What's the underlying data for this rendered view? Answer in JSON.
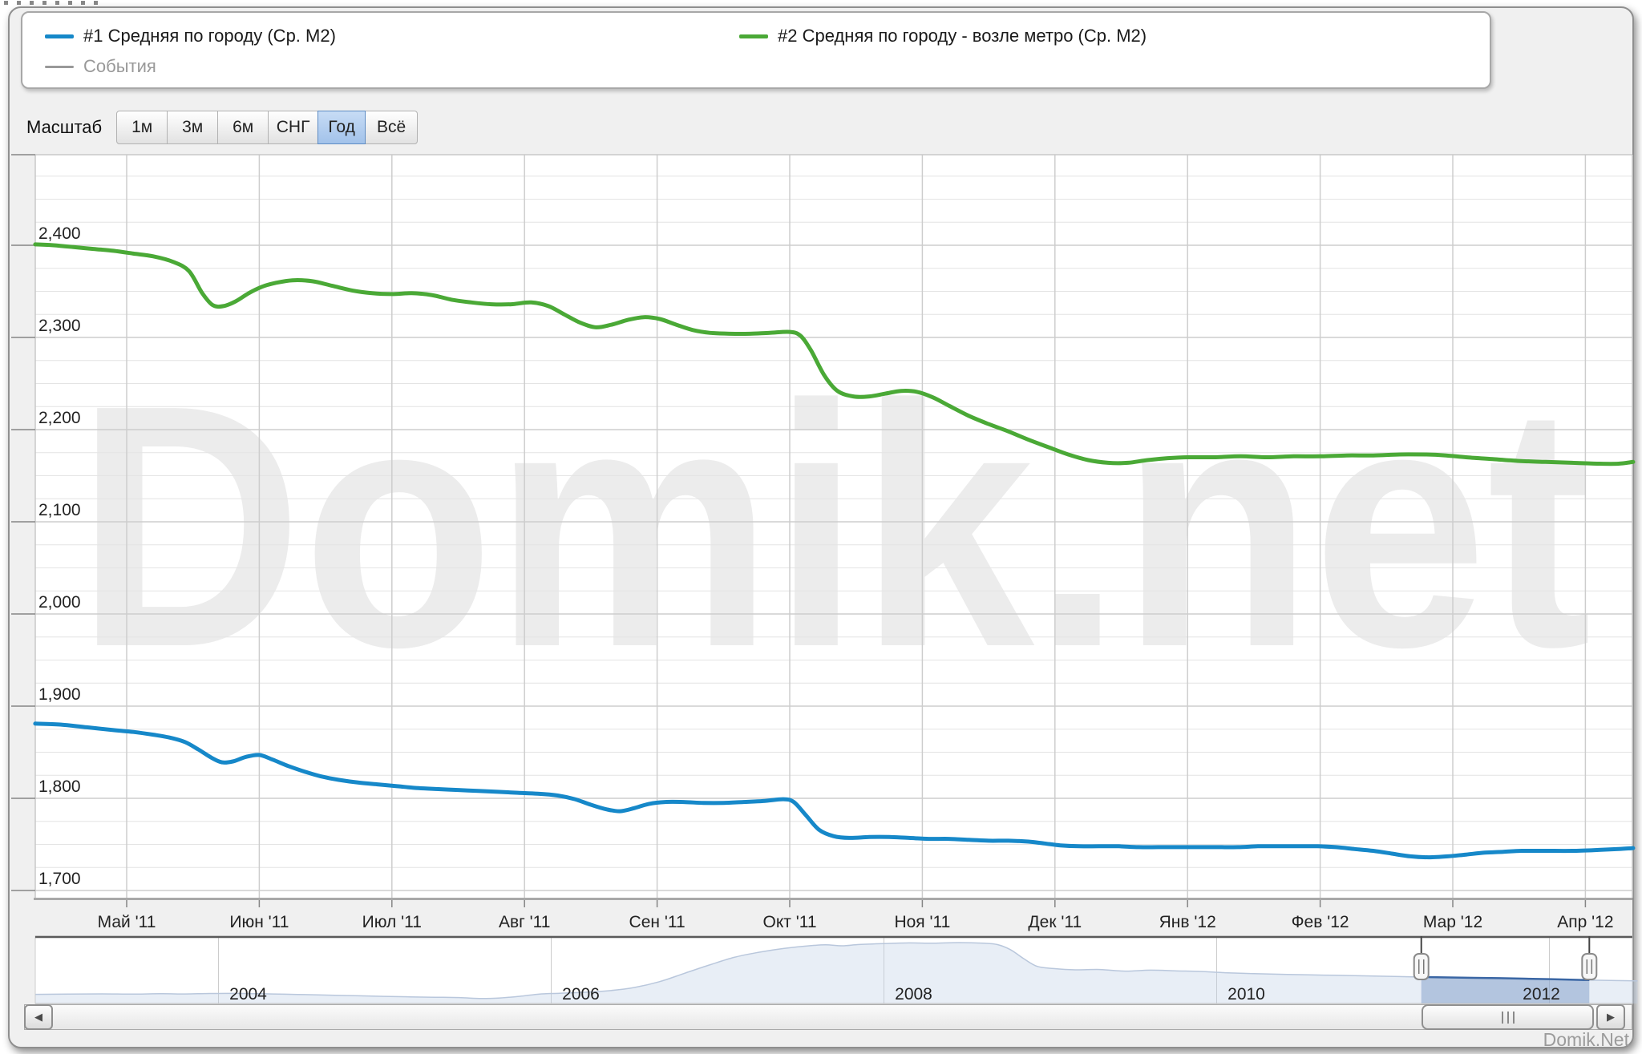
{
  "page": {
    "branding": "Domik.Net",
    "watermark": "Domik.net"
  },
  "legend": {
    "items": [
      {
        "label": "#1 Средняя по городу (Ср. М2)",
        "color": "#1688c9",
        "type": "series"
      },
      {
        "label": "#2 Средняя по городу - возле метро (Ср. М2)",
        "color": "#4aa936",
        "type": "series"
      },
      {
        "label": "События",
        "color": "#999999",
        "type": "events"
      }
    ]
  },
  "toolbar": {
    "label": "Масштаб",
    "buttons": [
      {
        "label": "1м",
        "selected": false
      },
      {
        "label": "3м",
        "selected": false
      },
      {
        "label": "6м",
        "selected": false
      },
      {
        "label": "СНГ",
        "selected": false
      },
      {
        "label": "Год",
        "selected": true
      },
      {
        "label": "Всё",
        "selected": false
      }
    ]
  },
  "scrollbar": {
    "left_icon": "◀",
    "right_icon": "▶"
  },
  "chart_data": {
    "type": "line",
    "title": "",
    "xlabel": "",
    "ylabel": "",
    "grid": true,
    "x_axis": {
      "unit": "month",
      "tick_labels": [
        "Май '11",
        "Июн '11",
        "Июл '11",
        "Авг '11",
        "Сен '11",
        "Окт '11",
        "Ноя '11",
        "Дек '11",
        "Янв '12",
        "Фев '12",
        "Мар '12",
        "Апр '12"
      ]
    },
    "y_axis": {
      "min": 1692,
      "max": 2498,
      "major_step": 100,
      "minor_step": 25,
      "ticks": [
        {
          "value": 2400,
          "label": "2,400"
        },
        {
          "value": 2300,
          "label": "2,300"
        },
        {
          "value": 2200,
          "label": "2,200"
        },
        {
          "value": 2100,
          "label": "2,100"
        },
        {
          "value": 2000,
          "label": "2,000"
        },
        {
          "value": 1900,
          "label": "1,900"
        },
        {
          "value": 1800,
          "label": "1,800"
        },
        {
          "value": 1700,
          "label": "1,700"
        }
      ]
    },
    "series": [
      {
        "name": "#1 Средняя по городу (Ср. М2)",
        "color": "#1688c9",
        "points": [
          [
            -0.69,
            1881
          ],
          [
            -0.5,
            1880
          ],
          [
            -0.3,
            1877
          ],
          [
            -0.1,
            1874
          ],
          [
            0.05,
            1872
          ],
          [
            0.2,
            1869
          ],
          [
            0.32,
            1866
          ],
          [
            0.44,
            1861
          ],
          [
            0.54,
            1853
          ],
          [
            0.64,
            1844
          ],
          [
            0.72,
            1839
          ],
          [
            0.8,
            1840
          ],
          [
            0.9,
            1845
          ],
          [
            1.0,
            1847
          ],
          [
            1.1,
            1842
          ],
          [
            1.22,
            1835
          ],
          [
            1.34,
            1829
          ],
          [
            1.46,
            1824
          ],
          [
            1.6,
            1820
          ],
          [
            1.75,
            1817
          ],
          [
            1.9,
            1815
          ],
          [
            2.05,
            1813
          ],
          [
            2.2,
            1811
          ],
          [
            2.35,
            1810
          ],
          [
            2.5,
            1809
          ],
          [
            2.65,
            1808
          ],
          [
            2.8,
            1807
          ],
          [
            2.95,
            1806
          ],
          [
            3.1,
            1805
          ],
          [
            3.25,
            1803
          ],
          [
            3.38,
            1799
          ],
          [
            3.5,
            1793
          ],
          [
            3.62,
            1788
          ],
          [
            3.72,
            1786
          ],
          [
            3.82,
            1789
          ],
          [
            3.94,
            1794
          ],
          [
            4.06,
            1796
          ],
          [
            4.2,
            1796
          ],
          [
            4.35,
            1795
          ],
          [
            4.5,
            1795
          ],
          [
            4.65,
            1796
          ],
          [
            4.8,
            1797
          ],
          [
            4.95,
            1799
          ],
          [
            5.03,
            1796
          ],
          [
            5.12,
            1782
          ],
          [
            5.22,
            1766
          ],
          [
            5.33,
            1759
          ],
          [
            5.45,
            1757
          ],
          [
            5.6,
            1758
          ],
          [
            5.75,
            1758
          ],
          [
            5.9,
            1757
          ],
          [
            6.05,
            1756
          ],
          [
            6.2,
            1756
          ],
          [
            6.35,
            1755
          ],
          [
            6.5,
            1754
          ],
          [
            6.65,
            1754
          ],
          [
            6.8,
            1753
          ],
          [
            6.92,
            1751
          ],
          [
            7.04,
            1749
          ],
          [
            7.18,
            1748
          ],
          [
            7.33,
            1748
          ],
          [
            7.48,
            1748
          ],
          [
            7.63,
            1747
          ],
          [
            7.78,
            1747
          ],
          [
            7.93,
            1747
          ],
          [
            8.08,
            1747
          ],
          [
            8.23,
            1747
          ],
          [
            8.38,
            1747
          ],
          [
            8.53,
            1748
          ],
          [
            8.68,
            1748
          ],
          [
            8.83,
            1748
          ],
          [
            8.98,
            1748
          ],
          [
            9.12,
            1747
          ],
          [
            9.26,
            1745
          ],
          [
            9.4,
            1743
          ],
          [
            9.54,
            1740
          ],
          [
            9.68,
            1737
          ],
          [
            9.82,
            1736
          ],
          [
            9.96,
            1737
          ],
          [
            10.1,
            1739
          ],
          [
            10.24,
            1741
          ],
          [
            10.38,
            1742
          ],
          [
            10.52,
            1743
          ],
          [
            10.7,
            1743
          ],
          [
            10.9,
            1743
          ],
          [
            11.1,
            1744
          ],
          [
            11.25,
            1745
          ],
          [
            11.36,
            1746
          ]
        ]
      },
      {
        "name": "#2 Средняя по городу - возле метро (Ср. М2)",
        "color": "#4aa936",
        "points": [
          [
            -0.69,
            2401
          ],
          [
            -0.55,
            2400
          ],
          [
            -0.4,
            2398
          ],
          [
            -0.25,
            2396
          ],
          [
            -0.1,
            2394
          ],
          [
            0.05,
            2391
          ],
          [
            0.2,
            2388
          ],
          [
            0.35,
            2382
          ],
          [
            0.47,
            2372
          ],
          [
            0.57,
            2348
          ],
          [
            0.65,
            2335
          ],
          [
            0.73,
            2334
          ],
          [
            0.82,
            2339
          ],
          [
            0.92,
            2348
          ],
          [
            1.02,
            2355
          ],
          [
            1.12,
            2359
          ],
          [
            1.25,
            2362
          ],
          [
            1.4,
            2361
          ],
          [
            1.55,
            2356
          ],
          [
            1.7,
            2351
          ],
          [
            1.85,
            2348
          ],
          [
            2.0,
            2347
          ],
          [
            2.15,
            2348
          ],
          [
            2.3,
            2346
          ],
          [
            2.45,
            2341
          ],
          [
            2.6,
            2338
          ],
          [
            2.75,
            2336
          ],
          [
            2.9,
            2336
          ],
          [
            3.05,
            2338
          ],
          [
            3.18,
            2334
          ],
          [
            3.3,
            2325
          ],
          [
            3.42,
            2316
          ],
          [
            3.54,
            2311
          ],
          [
            3.66,
            2314
          ],
          [
            3.78,
            2319
          ],
          [
            3.9,
            2322
          ],
          [
            4.02,
            2320
          ],
          [
            4.14,
            2314
          ],
          [
            4.27,
            2308
          ],
          [
            4.4,
            2305
          ],
          [
            4.55,
            2304
          ],
          [
            4.7,
            2304
          ],
          [
            4.85,
            2305
          ],
          [
            5.0,
            2306
          ],
          [
            5.08,
            2302
          ],
          [
            5.16,
            2286
          ],
          [
            5.26,
            2259
          ],
          [
            5.36,
            2242
          ],
          [
            5.48,
            2236
          ],
          [
            5.6,
            2236
          ],
          [
            5.72,
            2239
          ],
          [
            5.84,
            2242
          ],
          [
            5.96,
            2241
          ],
          [
            6.08,
            2235
          ],
          [
            6.2,
            2226
          ],
          [
            6.35,
            2215
          ],
          [
            6.5,
            2206
          ],
          [
            6.65,
            2198
          ],
          [
            6.8,
            2189
          ],
          [
            6.95,
            2181
          ],
          [
            7.1,
            2173
          ],
          [
            7.25,
            2167
          ],
          [
            7.4,
            2164
          ],
          [
            7.55,
            2164
          ],
          [
            7.7,
            2167
          ],
          [
            7.85,
            2169
          ],
          [
            8.0,
            2170
          ],
          [
            8.2,
            2170
          ],
          [
            8.4,
            2171
          ],
          [
            8.6,
            2170
          ],
          [
            8.8,
            2171
          ],
          [
            9.0,
            2171
          ],
          [
            9.2,
            2172
          ],
          [
            9.4,
            2172
          ],
          [
            9.6,
            2173
          ],
          [
            9.8,
            2173
          ],
          [
            9.95,
            2172
          ],
          [
            10.1,
            2170
          ],
          [
            10.3,
            2168
          ],
          [
            10.5,
            2166
          ],
          [
            10.7,
            2165
          ],
          [
            10.9,
            2164
          ],
          [
            11.1,
            2163
          ],
          [
            11.25,
            2163
          ],
          [
            11.36,
            2165
          ]
        ]
      },
      {
        "name": "События",
        "color": "#999999",
        "points": []
      }
    ],
    "navigator": {
      "year_labels": [
        {
          "year": 2004,
          "label": "2004"
        },
        {
          "year": 2006,
          "label": "2006"
        },
        {
          "year": 2008,
          "label": "2008"
        },
        {
          "year": 2010,
          "label": "2010"
        },
        {
          "year": 2012,
          "label": "2012"
        }
      ],
      "range": [
        2002.9,
        2012.53
      ],
      "selection": [
        2011.23,
        2012.24
      ],
      "points": [
        [
          2002.9,
          0.142
        ],
        [
          2003.1,
          0.146
        ],
        [
          2003.3,
          0.15
        ],
        [
          2003.5,
          0.146
        ],
        [
          2003.65,
          0.153
        ],
        [
          2003.8,
          0.149
        ],
        [
          2003.95,
          0.156
        ],
        [
          2004.1,
          0.158
        ],
        [
          2004.25,
          0.152
        ],
        [
          2004.4,
          0.145
        ],
        [
          2004.55,
          0.137
        ],
        [
          2004.7,
          0.128
        ],
        [
          2004.85,
          0.12
        ],
        [
          2005.0,
          0.111
        ],
        [
          2005.15,
          0.104
        ],
        [
          2005.3,
          0.098
        ],
        [
          2005.45,
          0.092
        ],
        [
          2005.58,
          0.078
        ],
        [
          2005.7,
          0.087
        ],
        [
          2005.82,
          0.115
        ],
        [
          2005.93,
          0.148
        ],
        [
          2006.05,
          0.16
        ],
        [
          2006.2,
          0.175
        ],
        [
          2006.35,
          0.2
        ],
        [
          2006.5,
          0.25
        ],
        [
          2006.65,
          0.34
        ],
        [
          2006.8,
          0.47
        ],
        [
          2006.95,
          0.6
        ],
        [
          2007.1,
          0.72
        ],
        [
          2007.25,
          0.8
        ],
        [
          2007.4,
          0.86
        ],
        [
          2007.55,
          0.9
        ],
        [
          2007.65,
          0.915
        ],
        [
          2007.75,
          0.9
        ],
        [
          2007.85,
          0.92
        ],
        [
          2008.0,
          0.935
        ],
        [
          2008.15,
          0.945
        ],
        [
          2008.3,
          0.94
        ],
        [
          2008.45,
          0.95
        ],
        [
          2008.6,
          0.94
        ],
        [
          2008.68,
          0.92
        ],
        [
          2008.76,
          0.84
        ],
        [
          2008.84,
          0.7
        ],
        [
          2008.92,
          0.58
        ],
        [
          2009.02,
          0.545
        ],
        [
          2009.15,
          0.525
        ],
        [
          2009.3,
          0.53
        ],
        [
          2009.45,
          0.505
        ],
        [
          2009.6,
          0.52
        ],
        [
          2009.75,
          0.51
        ],
        [
          2009.9,
          0.5
        ],
        [
          2010.05,
          0.48
        ],
        [
          2010.2,
          0.467
        ],
        [
          2010.35,
          0.458
        ],
        [
          2010.5,
          0.45
        ],
        [
          2010.65,
          0.443
        ],
        [
          2010.8,
          0.436
        ],
        [
          2010.95,
          0.428
        ],
        [
          2011.1,
          0.42
        ],
        [
          2011.25,
          0.413
        ],
        [
          2011.4,
          0.406
        ],
        [
          2011.55,
          0.4
        ],
        [
          2011.7,
          0.395
        ],
        [
          2011.85,
          0.388
        ],
        [
          2012.0,
          0.38
        ],
        [
          2012.15,
          0.37
        ],
        [
          2012.3,
          0.362
        ],
        [
          2012.53,
          0.353
        ]
      ]
    }
  }
}
